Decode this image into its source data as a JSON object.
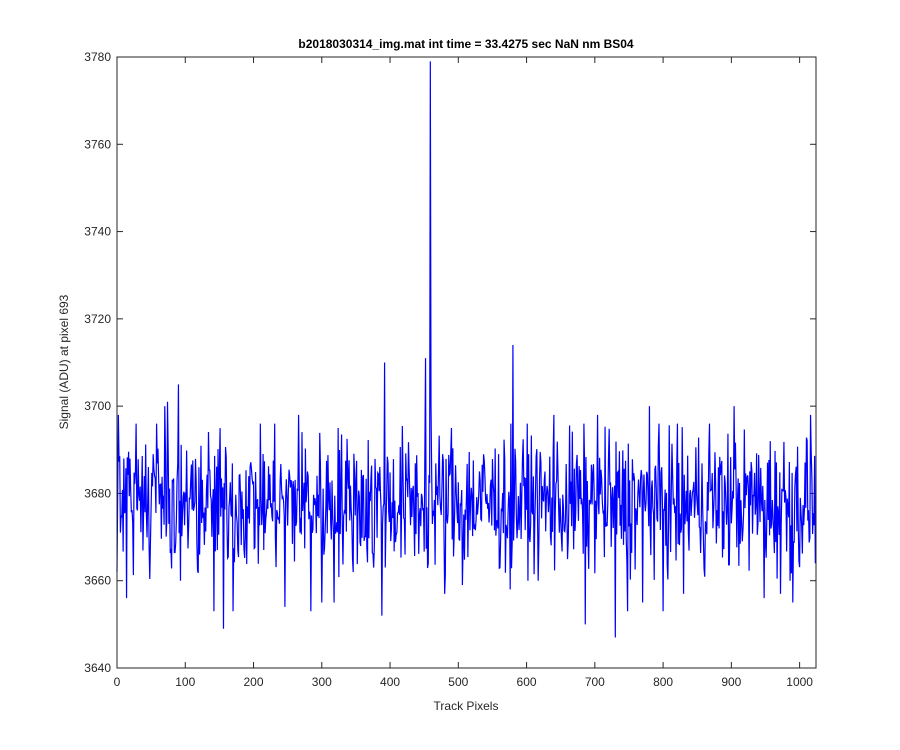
{
  "chart_data": {
    "type": "line",
    "title": "b2018030314_img.mat int time = 33.4275 sec  NaN nm BS04",
    "xlabel": "Track Pixels",
    "ylabel": "Signal (ADU) at pixel 693",
    "xlim": [
      0,
      1024
    ],
    "ylim": [
      3640,
      3780
    ],
    "xticks": [
      0,
      100,
      200,
      300,
      400,
      500,
      600,
      700,
      800,
      900,
      1000
    ],
    "yticks": [
      3640,
      3660,
      3680,
      3700,
      3720,
      3740,
      3760,
      3780
    ],
    "grid": false,
    "series": [
      {
        "color": "#0000ff",
        "n_points": 1024,
        "baseline": 3678,
        "noise_range": [
          3660,
          3696
        ],
        "x": [
          0,
          2,
          10,
          14,
          70,
          74,
          90,
          142,
          156,
          170,
          246,
          266,
          284,
          300,
          318,
          324,
          376,
          388,
          392,
          452,
          456,
          459,
          460,
          462,
          480,
          490,
          506,
          576,
          580,
          640,
          686,
          704,
          730,
          748,
          770,
          780,
          800,
          830,
          868,
          904,
          948,
          972,
          990,
          1016,
          1023
        ],
        "y": [
          3662,
          3698,
          3688,
          3656,
          3700,
          3701,
          3705,
          3653,
          3649,
          3653,
          3654,
          3698,
          3653,
          3655,
          3655,
          3695,
          3663,
          3652,
          3710,
          3711,
          3664,
          3779,
          3700,
          3673,
          3657,
          3695,
          3659,
          3658,
          3714,
          3698,
          3650,
          3698,
          3647,
          3653,
          3655,
          3700,
          3653,
          3657,
          3696,
          3700,
          3656,
          3657,
          3655,
          3698,
          3664
        ]
      }
    ]
  }
}
